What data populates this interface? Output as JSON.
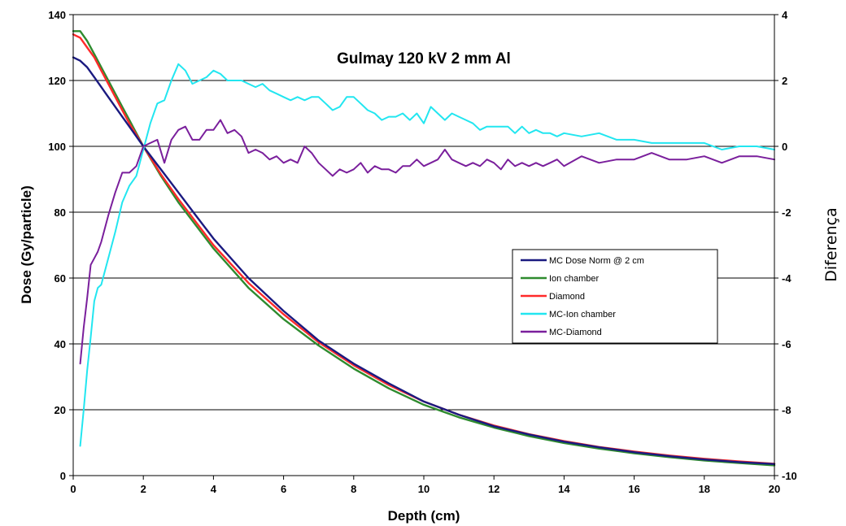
{
  "chart_data": {
    "type": "line",
    "title": "Gulmay 120 kV 2 mm Al",
    "xlabel": "Depth (cm)",
    "ylabel": "Dose (Gy/particle)",
    "y2label": "Diferença",
    "xlim": [
      0,
      20
    ],
    "ylim": [
      0,
      140
    ],
    "y2lim": [
      -10,
      4
    ],
    "xticks": [
      "0",
      "2",
      "4",
      "6",
      "8",
      "10",
      "12",
      "14",
      "16",
      "18",
      "20"
    ],
    "yticks": [
      "0",
      "20",
      "40",
      "60",
      "80",
      "100",
      "120",
      "140"
    ],
    "y2ticks": [
      "-10",
      "-8",
      "-6",
      "-4",
      "-2",
      "0",
      "2",
      "4"
    ],
    "grid": "horizontal",
    "legend_position": "center-right",
    "series": [
      {
        "name": "MC Dose Norm @ 2 cm",
        "axis": "left",
        "color": "#1a1a80",
        "x": [
          0,
          0.2,
          0.4,
          0.6,
          0.8,
          1,
          1.2,
          1.4,
          1.6,
          1.8,
          2,
          2.5,
          3,
          3.5,
          4,
          5,
          6,
          7,
          8,
          9,
          10,
          11,
          12,
          13,
          14,
          15,
          16,
          17,
          18,
          19,
          20
        ],
        "values": [
          127,
          126,
          124,
          121,
          118,
          115,
          112,
          109,
          106,
          103,
          100,
          93,
          86,
          79,
          72,
          60,
          50,
          41,
          34,
          28,
          22.5,
          18.5,
          15,
          12.5,
          10.3,
          8.6,
          7.1,
          5.9,
          4.9,
          4.1,
          3.5
        ]
      },
      {
        "name": "Ion chamber",
        "axis": "left",
        "color": "#2e8b2e",
        "x": [
          0,
          0.2,
          0.4,
          0.6,
          0.8,
          1,
          1.2,
          1.4,
          1.6,
          1.8,
          2,
          2.5,
          3,
          3.5,
          4,
          5,
          6,
          7,
          8,
          9,
          10,
          11,
          12,
          13,
          14,
          15,
          16,
          17,
          18,
          19,
          20
        ],
        "values": [
          135,
          135,
          132,
          128,
          124,
          120,
          116,
          112,
          108,
          104,
          100,
          91,
          83,
          76,
          69,
          57,
          47.5,
          39.5,
          32.5,
          26.5,
          21.5,
          17.7,
          14.6,
          12,
          9.9,
          8.2,
          6.8,
          5.6,
          4.6,
          3.8,
          3.1
        ]
      },
      {
        "name": "Diamond",
        "axis": "left",
        "color": "#ff2a2a",
        "x": [
          0,
          0.2,
          0.4,
          0.6,
          0.8,
          1,
          1.2,
          1.4,
          1.6,
          1.8,
          2,
          2.5,
          3,
          3.5,
          4,
          5,
          6,
          7,
          8,
          9,
          10,
          11,
          12,
          13,
          14,
          15,
          16,
          17,
          18,
          19,
          20
        ],
        "values": [
          134,
          133,
          130,
          127,
          123,
          119,
          115,
          111,
          107,
          103.5,
          100,
          91.5,
          84,
          77,
          70,
          58.5,
          49,
          40.5,
          33.5,
          27.5,
          22.5,
          18.5,
          15.2,
          12.6,
          10.5,
          8.7,
          7.3,
          6.1,
          5.1,
          4.3,
          3.6
        ]
      },
      {
        "name": "MC-Ion chamber",
        "axis": "right",
        "color": "#22e6f0",
        "x": [
          0.2,
          0.3,
          0.4,
          0.5,
          0.6,
          0.7,
          0.8,
          1,
          1.2,
          1.4,
          1.6,
          1.8,
          2,
          2.2,
          2.4,
          2.6,
          2.8,
          3,
          3.2,
          3.4,
          3.6,
          3.8,
          4,
          4.2,
          4.4,
          4.6,
          4.8,
          5,
          5.2,
          5.4,
          5.6,
          5.8,
          6,
          6.2,
          6.4,
          6.6,
          6.8,
          7,
          7.2,
          7.4,
          7.6,
          7.8,
          8,
          8.2,
          8.4,
          8.6,
          8.8,
          9,
          9.2,
          9.4,
          9.6,
          9.8,
          10,
          10.2,
          10.4,
          10.6,
          10.8,
          11,
          11.2,
          11.4,
          11.6,
          11.8,
          12,
          12.2,
          12.4,
          12.6,
          12.8,
          13,
          13.2,
          13.4,
          13.6,
          13.8,
          14,
          14.5,
          15,
          15.5,
          16,
          16.5,
          17,
          17.5,
          18,
          18.5,
          19,
          19.5,
          20
        ],
        "values": [
          -9.1,
          -8,
          -6.8,
          -5.8,
          -4.7,
          -4.3,
          -4.2,
          -3.4,
          -2.6,
          -1.7,
          -1.2,
          -0.9,
          -0.1,
          0.7,
          1.3,
          1.4,
          2,
          2.5,
          2.3,
          1.9,
          2,
          2.1,
          2.3,
          2.2,
          2,
          2,
          2,
          1.9,
          1.8,
          1.9,
          1.7,
          1.6,
          1.5,
          1.4,
          1.5,
          1.4,
          1.5,
          1.5,
          1.3,
          1.1,
          1.2,
          1.5,
          1.5,
          1.3,
          1.1,
          1,
          0.8,
          0.9,
          0.9,
          1,
          0.8,
          1,
          0.7,
          1.2,
          1,
          0.8,
          1,
          0.9,
          0.8,
          0.7,
          0.5,
          0.6,
          0.6,
          0.6,
          0.6,
          0.4,
          0.6,
          0.4,
          0.5,
          0.4,
          0.4,
          0.3,
          0.4,
          0.3,
          0.4,
          0.2,
          0.2,
          0.1,
          0.1,
          0.1,
          0.1,
          -0.1,
          0,
          0,
          -0.1
        ]
      },
      {
        "name": "MC-Diamond",
        "axis": "right",
        "color": "#7a1f9c",
        "x": [
          0.2,
          0.3,
          0.4,
          0.5,
          0.6,
          0.7,
          0.8,
          1,
          1.2,
          1.4,
          1.6,
          1.8,
          2,
          2.2,
          2.4,
          2.6,
          2.8,
          3,
          3.2,
          3.4,
          3.6,
          3.8,
          4,
          4.2,
          4.4,
          4.6,
          4.8,
          5,
          5.2,
          5.4,
          5.6,
          5.8,
          6,
          6.2,
          6.4,
          6.6,
          6.8,
          7,
          7.2,
          7.4,
          7.6,
          7.8,
          8,
          8.2,
          8.4,
          8.6,
          8.8,
          9,
          9.2,
          9.4,
          9.6,
          9.8,
          10,
          10.2,
          10.4,
          10.6,
          10.8,
          11,
          11.2,
          11.4,
          11.6,
          11.8,
          12,
          12.2,
          12.4,
          12.6,
          12.8,
          13,
          13.2,
          13.4,
          13.6,
          13.8,
          14,
          14.5,
          15,
          15.5,
          16,
          16.5,
          17,
          17.5,
          18,
          18.5,
          19,
          19.5,
          20
        ],
        "values": [
          -6.6,
          -5.5,
          -4.6,
          -3.6,
          -3.4,
          -3.2,
          -2.9,
          -2.1,
          -1.4,
          -0.8,
          -0.8,
          -0.6,
          0,
          0.1,
          0.2,
          -0.5,
          0.2,
          0.5,
          0.6,
          0.2,
          0.2,
          0.5,
          0.5,
          0.8,
          0.4,
          0.5,
          0.3,
          -0.2,
          -0.1,
          -0.2,
          -0.4,
          -0.3,
          -0.5,
          -0.4,
          -0.5,
          0,
          -0.2,
          -0.5,
          -0.7,
          -0.9,
          -0.7,
          -0.8,
          -0.7,
          -0.5,
          -0.8,
          -0.6,
          -0.7,
          -0.7,
          -0.8,
          -0.6,
          -0.6,
          -0.4,
          -0.6,
          -0.5,
          -0.4,
          -0.1,
          -0.4,
          -0.5,
          -0.6,
          -0.5,
          -0.6,
          -0.4,
          -0.5,
          -0.7,
          -0.4,
          -0.6,
          -0.5,
          -0.6,
          -0.5,
          -0.6,
          -0.5,
          -0.4,
          -0.6,
          -0.3,
          -0.5,
          -0.4,
          -0.4,
          -0.2,
          -0.4,
          -0.4,
          -0.3,
          -0.5,
          -0.3,
          -0.3,
          -0.4
        ]
      }
    ]
  }
}
